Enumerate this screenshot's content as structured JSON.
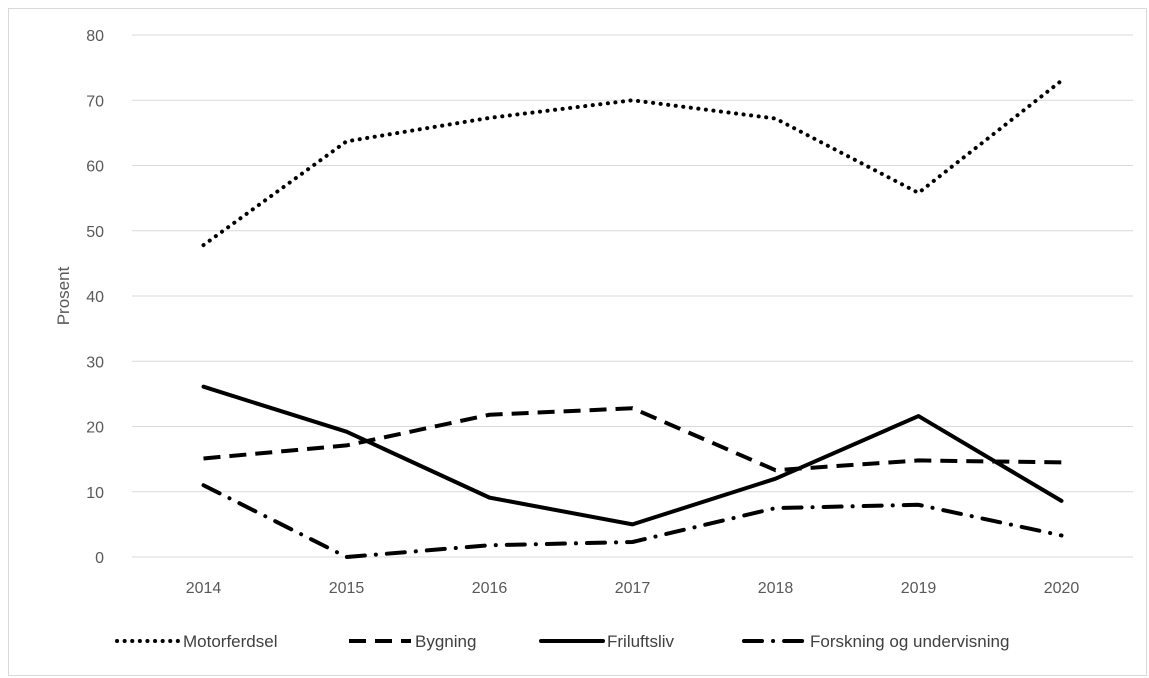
{
  "chart_data": {
    "type": "line",
    "title": "",
    "xlabel": "",
    "ylabel": "Prosent",
    "ylim": [
      0,
      80
    ],
    "yticks": [
      0,
      10,
      20,
      30,
      40,
      50,
      60,
      70,
      80
    ],
    "categories": [
      "2014",
      "2015",
      "2016",
      "2017",
      "2018",
      "2019",
      "2020"
    ],
    "grid": "horizontal",
    "legend_position": "bottom",
    "series": [
      {
        "name": "Motorferdsel",
        "style": "dotted",
        "color": "#000000",
        "values": [
          47.8,
          63.7,
          67.3,
          70.0,
          67.2,
          55.8,
          73.0
        ]
      },
      {
        "name": "Bygning",
        "style": "dashed",
        "color": "#000000",
        "values": [
          15.1,
          17.1,
          21.8,
          22.8,
          13.3,
          14.8,
          14.5
        ]
      },
      {
        "name": "Friluftsliv",
        "style": "solid",
        "color": "#000000",
        "values": [
          26.1,
          19.2,
          9.1,
          5.0,
          12.0,
          21.6,
          8.6
        ]
      },
      {
        "name": "Forskning og undervisning",
        "style": "dashdot",
        "color": "#000000",
        "values": [
          11.0,
          0.0,
          1.8,
          2.3,
          7.5,
          8.0,
          3.3
        ]
      }
    ]
  }
}
